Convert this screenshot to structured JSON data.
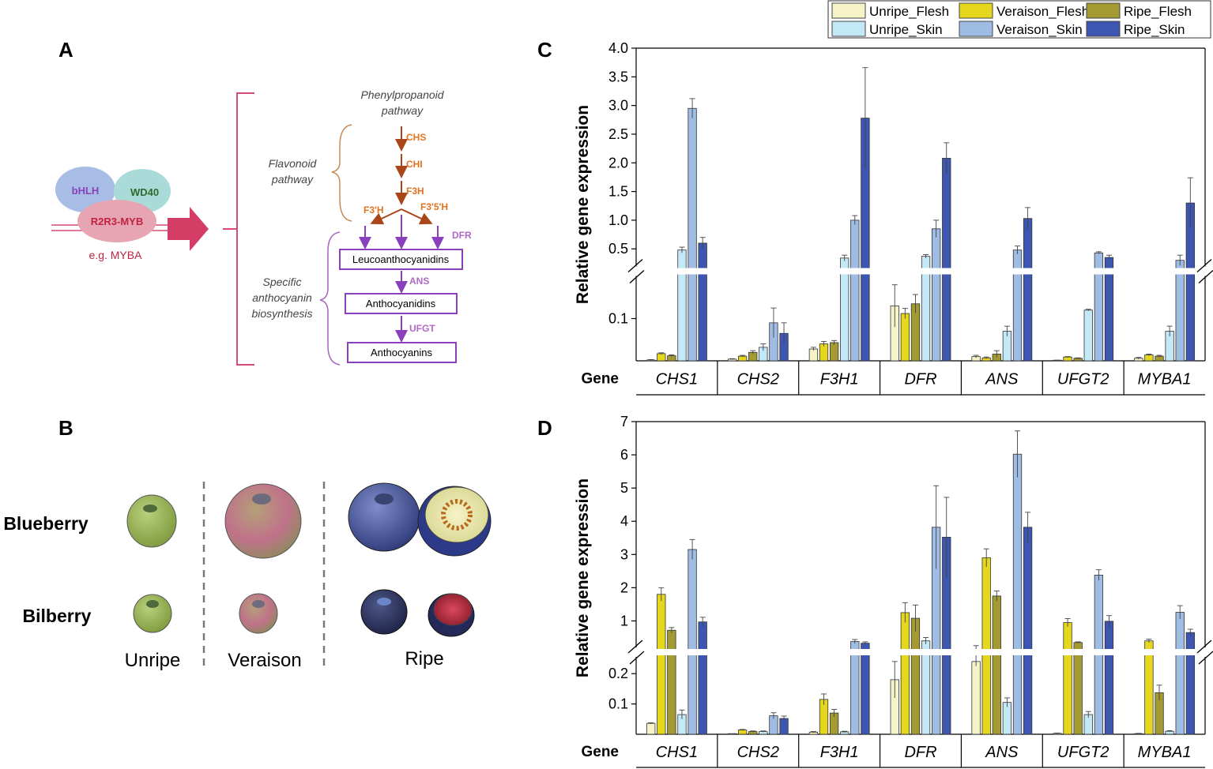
{
  "panels": {
    "a": "A",
    "b": "B",
    "c": "C",
    "d": "D"
  },
  "panel_a": {
    "tf": {
      "bhlh": "bHLH",
      "wd40": "WD40",
      "myb": "R2R3-MYB",
      "example": "e.g. MYBA"
    },
    "phenyl": [
      "Phenylpropanoid",
      "pathway"
    ],
    "flavonoid": [
      "Flavonoid",
      "pathway"
    ],
    "specific": [
      "Specific",
      "anthocyanin",
      "biosynthesis"
    ],
    "enzymes": {
      "chs": "CHS",
      "chi": "CHI",
      "f3h": "F3H",
      "f3ph": "F3'H",
      "f35h": "F3'5'H",
      "dfr": "DFR",
      "ans": "ANS",
      "ufgt": "UFGT"
    },
    "boxes": [
      "Leucoanthocyanidins",
      "Anthocyanidins",
      "Anthocyanins"
    ]
  },
  "panel_b": {
    "rows": [
      "Blueberry",
      "Bilberry"
    ],
    "stages": [
      "Unripe",
      "Veraison",
      "Ripe"
    ]
  },
  "colors": {
    "Unripe_Flesh": "#f7f3c8",
    "Veraison_Flesh": "#e5d71e",
    "Ripe_Flesh": "#a39a31",
    "Unripe_Skin": "#c3e9f7",
    "Veraison_Skin": "#9fbde4",
    "Ripe_Skin": "#3c56b2"
  },
  "legend": [
    "Unripe_Flesh",
    "Veraison_Flesh",
    "Ripe_Flesh",
    "Unripe_Skin",
    "Veraison_Skin",
    "Ripe_Skin"
  ],
  "gene_header": "Gene",
  "chart_data": [
    {
      "panel": "C",
      "type": "bar",
      "ylabel": "Relative gene expression",
      "axis_break": true,
      "lower_ylim": [
        0,
        0.2
      ],
      "lower_ticks": [
        0.1
      ],
      "upper_ylim": [
        0.2,
        4.0
      ],
      "upper_ticks": [
        0.5,
        1.0,
        1.5,
        2.0,
        2.5,
        3.0,
        3.5,
        4.0
      ],
      "categories": [
        "CHS1",
        "CHS2",
        "F3H1",
        "DFR",
        "ANS",
        "UFGT2",
        "MYBA1"
      ],
      "series": [
        {
          "name": "Unripe_Flesh",
          "values": [
            0.002,
            0.004,
            0.028,
            0.13,
            0.01,
            0.001,
            0.006
          ],
          "errors": [
            0.001,
            0.001,
            0.004,
            0.05,
            0.003,
            0.0005,
            0.002
          ]
        },
        {
          "name": "Veraison_Flesh",
          "values": [
            0.017,
            0.011,
            0.04,
            0.112,
            0.007,
            0.009,
            0.014
          ],
          "errors": [
            0.002,
            0.002,
            0.006,
            0.012,
            0.002,
            0.001,
            0.002
          ]
        },
        {
          "name": "Ripe_Flesh",
          "values": [
            0.012,
            0.02,
            0.043,
            0.135,
            0.016,
            0.006,
            0.011
          ],
          "errors": [
            0.002,
            0.004,
            0.005,
            0.022,
            0.008,
            0.001,
            0.002
          ]
        },
        {
          "name": "Unripe_Skin",
          "values": [
            0.48,
            0.032,
            0.34,
            0.37,
            0.07,
            0.12,
            0.07
          ],
          "errors": [
            0.05,
            0.008,
            0.05,
            0.03,
            0.012,
            0.002,
            0.012
          ]
        },
        {
          "name": "Veraison_Skin",
          "values": [
            2.95,
            0.09,
            1.0,
            0.85,
            0.48,
            0.43,
            0.3
          ],
          "errors": [
            0.17,
            0.035,
            0.08,
            0.15,
            0.07,
            0.02,
            0.09
          ]
        },
        {
          "name": "Ripe_Skin",
          "values": [
            0.6,
            0.065,
            2.78,
            2.08,
            1.03,
            0.35,
            1.3
          ],
          "errors": [
            0.1,
            0.025,
            0.88,
            0.27,
            0.19,
            0.04,
            0.44
          ]
        }
      ]
    },
    {
      "panel": "D",
      "type": "bar",
      "ylabel": "Relative gene expression",
      "axis_break": true,
      "lower_ylim": [
        0,
        0.25
      ],
      "lower_ticks": [
        0.1,
        0.2
      ],
      "upper_ylim": [
        0.25,
        7
      ],
      "upper_ticks": [
        1,
        2,
        3,
        4,
        5,
        6,
        7
      ],
      "categories": [
        "CHS1",
        "CHS2",
        "F3H1",
        "DFR",
        "ANS",
        "UFGT2",
        "MYBA1"
      ],
      "series": [
        {
          "name": "Unripe_Flesh",
          "values": [
            0.036,
            0.001,
            0.007,
            0.18,
            0.24,
            0.003,
            0.002
          ],
          "errors": [
            0.002,
            0.0005,
            0.002,
            0.06,
            0.015,
            0.001,
            0.001
          ]
        },
        {
          "name": "Veraison_Flesh",
          "values": [
            1.8,
            0.014,
            0.115,
            1.25,
            2.9,
            0.95,
            0.4
          ],
          "errors": [
            0.2,
            0.002,
            0.018,
            0.3,
            0.27,
            0.12,
            0.05
          ]
        },
        {
          "name": "Ripe_Flesh",
          "values": [
            0.72,
            0.009,
            0.07,
            1.08,
            1.75,
            0.35,
            0.137
          ],
          "errors": [
            0.08,
            0.002,
            0.012,
            0.4,
            0.15,
            0.02,
            0.025
          ]
        },
        {
          "name": "Unripe_Skin",
          "values": [
            0.065,
            0.009,
            0.008,
            0.4,
            0.105,
            0.065,
            0.01
          ],
          "errors": [
            0.015,
            0.002,
            0.002,
            0.1,
            0.015,
            0.01,
            0.002
          ]
        },
        {
          "name": "Veraison_Skin",
          "values": [
            3.15,
            0.061,
            0.38,
            3.82,
            6.02,
            2.38,
            1.26
          ],
          "errors": [
            0.3,
            0.01,
            0.06,
            1.25,
            0.7,
            0.16,
            0.2
          ]
        },
        {
          "name": "Ripe_Skin",
          "values": [
            0.97,
            0.052,
            0.33,
            3.52,
            3.82,
            0.99,
            0.65
          ],
          "errors": [
            0.14,
            0.008,
            0.04,
            1.2,
            0.45,
            0.17,
            0.1
          ]
        }
      ]
    }
  ]
}
